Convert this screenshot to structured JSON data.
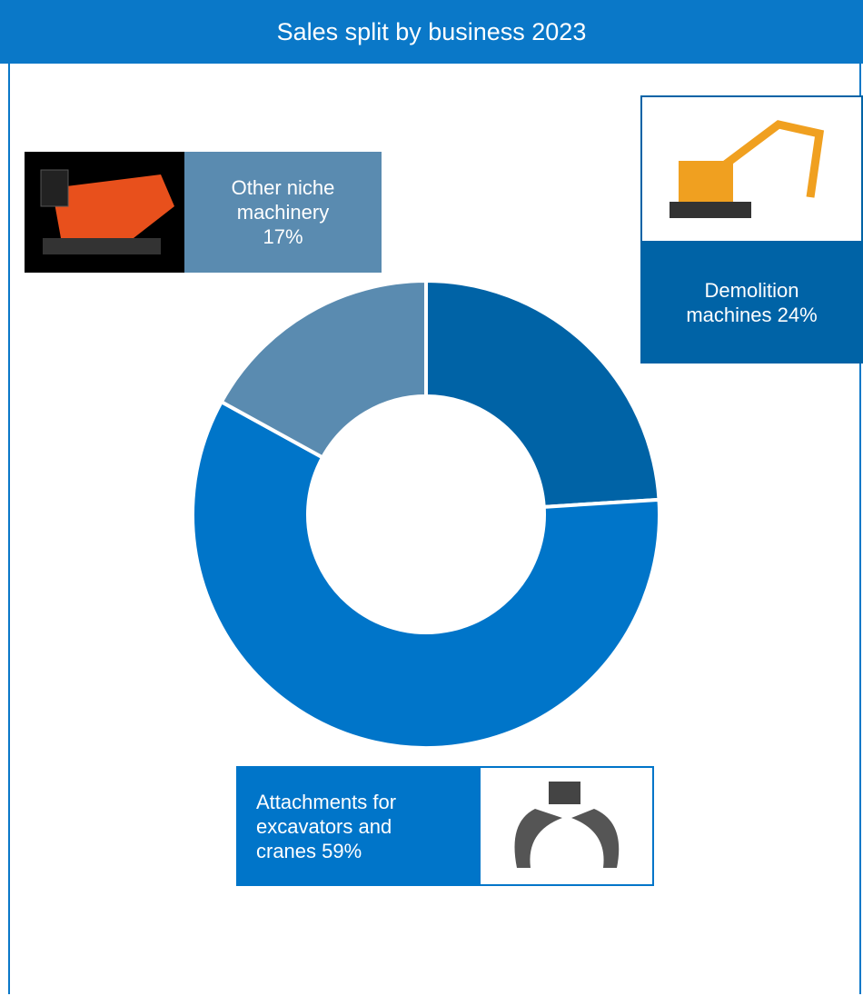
{
  "chart_data": {
    "type": "pie",
    "title": "Sales split by business 2023",
    "categories": [
      "Demolition machines",
      "Attachments for excavators and cranes",
      "Other niche machinery"
    ],
    "values": [
      24,
      59,
      17
    ],
    "value_labels": [
      "24%",
      "59%",
      "17%"
    ],
    "colors": [
      "#0063a6",
      "#0075c9",
      "#5a8bb0"
    ]
  }
}
